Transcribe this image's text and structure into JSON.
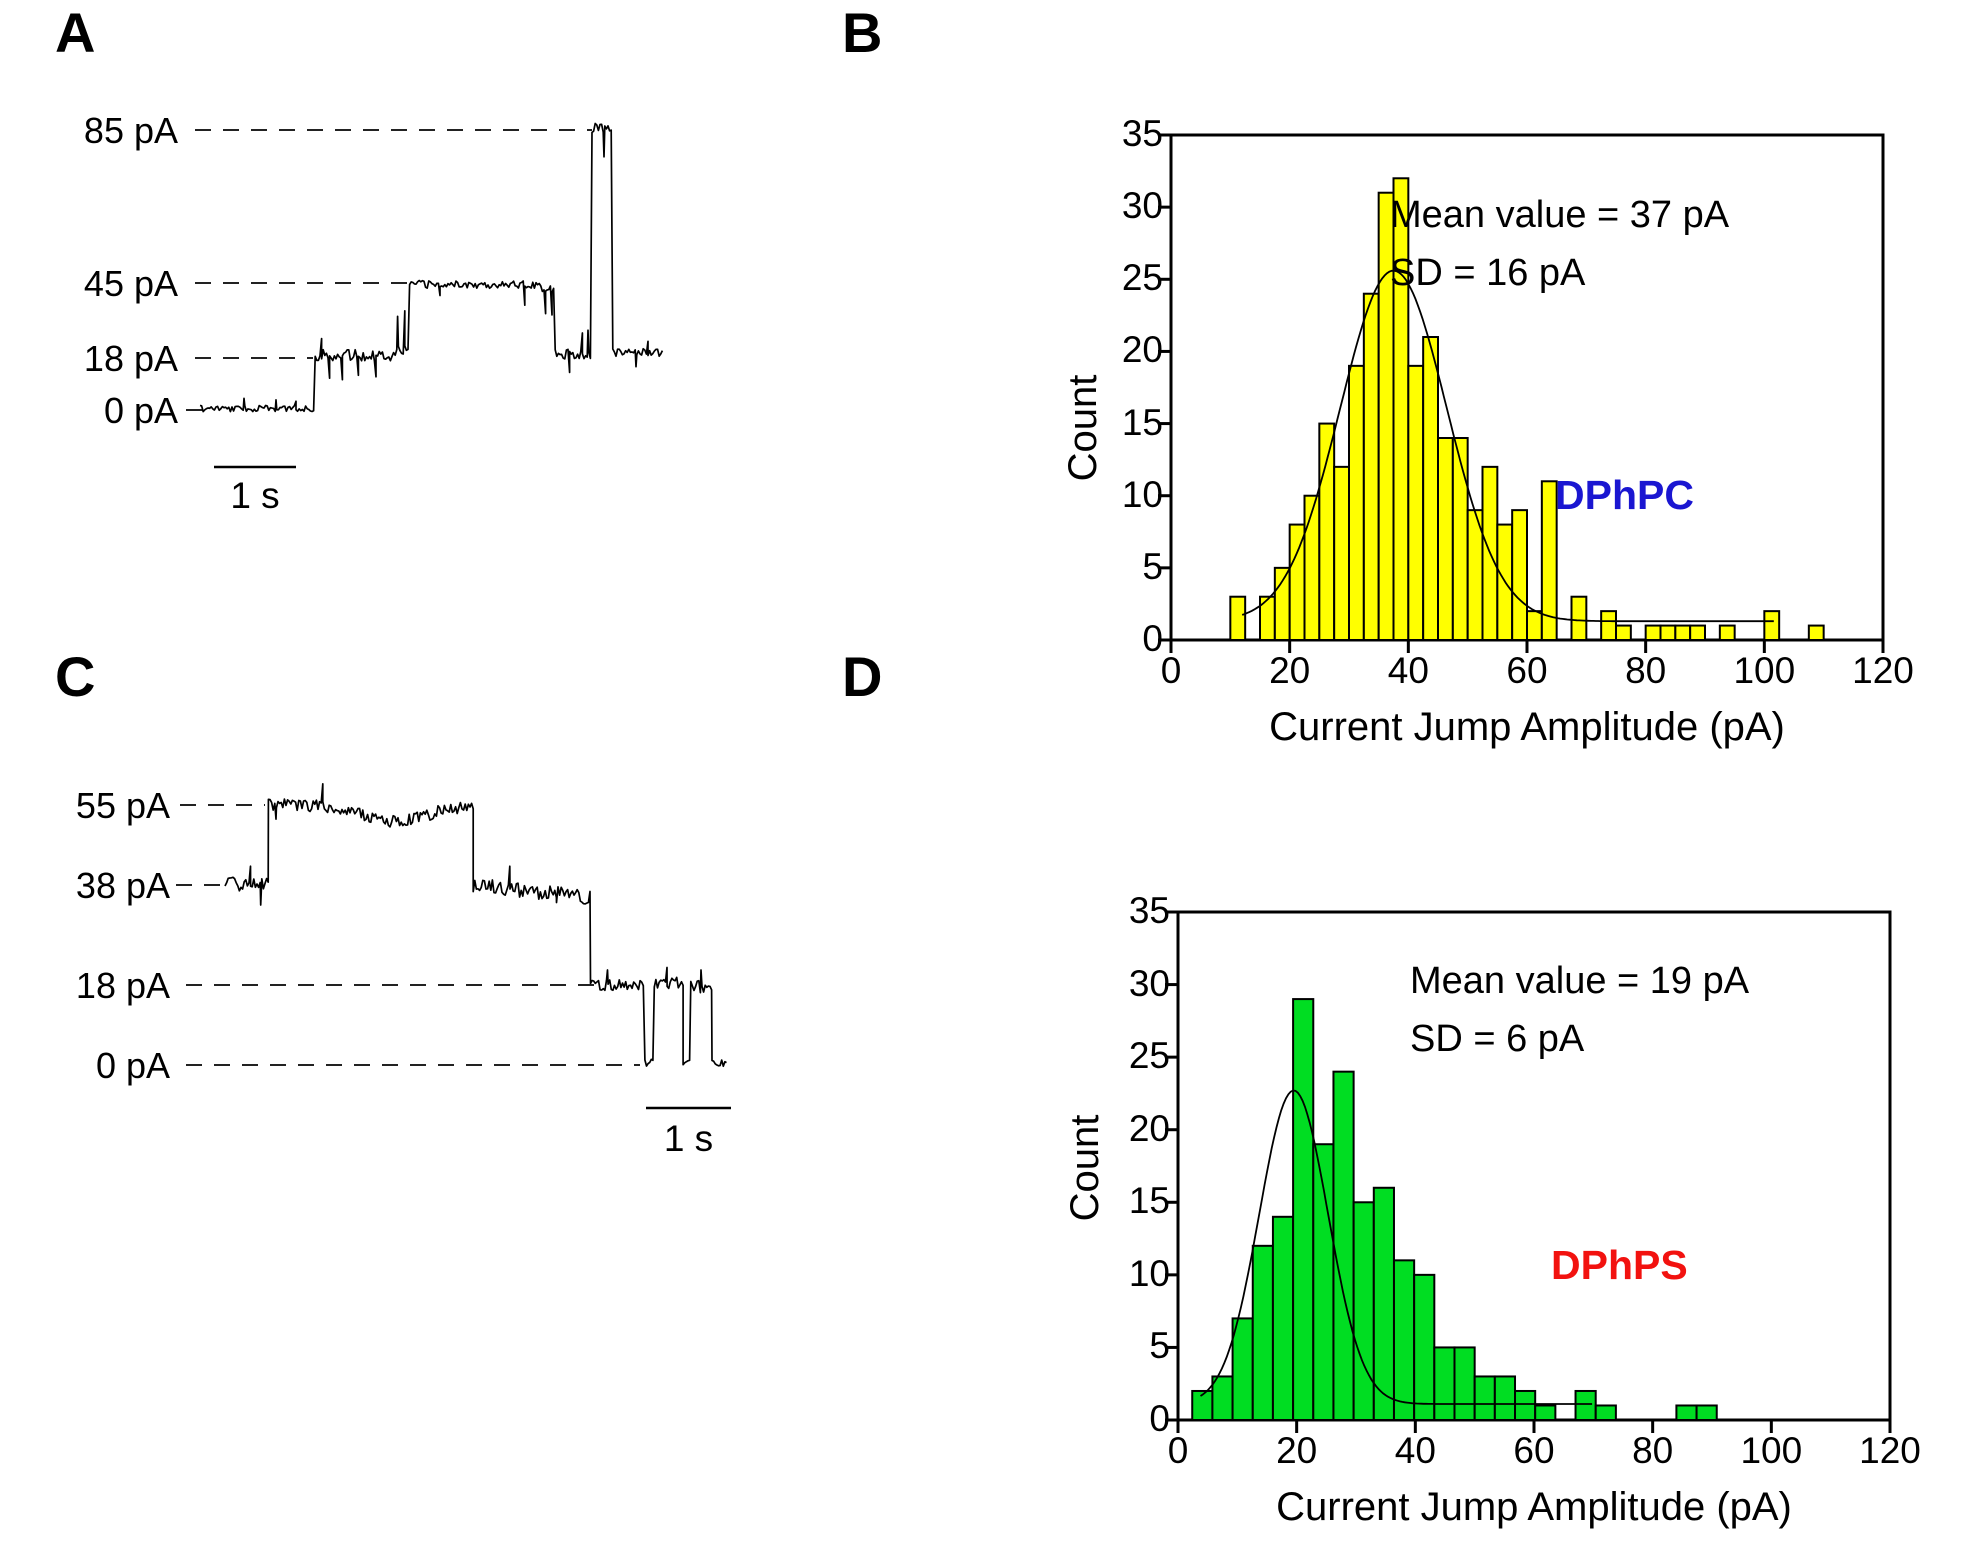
{
  "panels": {
    "a": {
      "label": "A",
      "levels": [
        {
          "text": "85 pA",
          "pA": 85
        },
        {
          "text": "45 pA",
          "pA": 45
        },
        {
          "text": "18 pA",
          "pA": 18
        },
        {
          "text": "0 pA",
          "pA": 0
        }
      ],
      "scale_bar": {
        "label": "1 s",
        "seconds": 1
      },
      "trace": {
        "units": {
          "x": "s",
          "y": "pA"
        },
        "segments": [
          {
            "t0": 0,
            "t1": 1.44,
            "pA": 0.5,
            "noise": 1.1,
            "spikes": [
              [
                0.55,
                4
              ],
              [
                0.95,
                3.5
              ],
              [
                1.2,
                3
              ]
            ]
          },
          {
            "t0": 1.44,
            "t1": 2.42,
            "pA": 19,
            "noise": 2.0,
            "spikes": [
              [
                1.52,
                25
              ],
              [
                1.62,
                11
              ],
              [
                1.78,
                10.5
              ],
              [
                1.98,
                12
              ],
              [
                2.2,
                11.5
              ]
            ]
          },
          {
            "t0": 2.42,
            "t1": 2.62,
            "pA": 21,
            "noise": 2.2,
            "spikes": [
              [
                2.47,
                33
              ],
              [
                2.56,
                35
              ]
            ]
          },
          {
            "t0": 2.62,
            "t1": 4.28,
            "pA": 44.5,
            "noise": 1.4,
            "spikes": [
              [
                3.0,
                40.5
              ],
              [
                4.06,
                37
              ]
            ]
          },
          {
            "t0": 4.28,
            "t1": 4.44,
            "pA": 43,
            "noise": 2.0,
            "spikes": [
              [
                4.32,
                34
              ],
              [
                4.4,
                33.5
              ]
            ]
          },
          {
            "t0": 4.44,
            "t1": 4.9,
            "pA": 19.5,
            "noise": 2.0,
            "spikes": [
              [
                4.62,
                13
              ],
              [
                4.78,
                27
              ],
              [
                4.85,
                28
              ]
            ]
          },
          {
            "t0": 4.9,
            "t1": 5.16,
            "pA": 85.5,
            "noise": 1.2,
            "spikes": [
              [
                5.05,
                78
              ]
            ]
          },
          {
            "t0": 5.16,
            "t1": 5.8,
            "pA": 20,
            "noise": 1.4,
            "spikes": [
              [
                5.45,
                15
              ],
              [
                5.6,
                24
              ]
            ]
          }
        ]
      }
    },
    "b": {
      "label": "B"
    },
    "c": {
      "label": "C",
      "levels": [
        {
          "text": "55 pA",
          "pA": 55
        },
        {
          "text": "38 pA",
          "pA": 38
        },
        {
          "text": "18 pA",
          "pA": 18
        },
        {
          "text": "0 pA",
          "pA": 0
        }
      ],
      "scale_bar": {
        "label": "1 s",
        "seconds": 1
      },
      "trace": {
        "units": {
          "x": "s",
          "y": "pA"
        },
        "segments": [
          {
            "t0": 0,
            "t1": 0.51,
            "pA": 38,
            "noise": 1.6,
            "spikes": [
              [
                0.3,
                42
              ],
              [
                0.42,
                34
              ]
            ]
          },
          {
            "t0": 0.51,
            "t1": 2.92,
            "pA": 55,
            "noise": 1.3,
            "sag": -3.5,
            "spikes": [
              [
                0.6,
                52
              ],
              [
                1.15,
                59.5
              ]
            ]
          },
          {
            "t0": 2.92,
            "t1": 4.3,
            "pA": 38,
            "noise": 1.5,
            "drift": -2.5,
            "spikes": [
              [
                3.35,
                42
              ],
              [
                3.9,
                34.5
              ]
            ]
          },
          {
            "t0": 4.3,
            "t1": 4.94,
            "pA": 18,
            "noise": 1.2,
            "spikes": [
              [
                4.5,
                21
              ]
            ]
          },
          {
            "t0": 4.94,
            "t1": 5.05,
            "pA": 0.5,
            "noise": 0.8,
            "spikes": []
          },
          {
            "t0": 5.05,
            "t1": 5.39,
            "pA": 18.5,
            "noise": 1.2,
            "spikes": [
              [
                5.2,
                21.5
              ]
            ]
          },
          {
            "t0": 5.39,
            "t1": 5.48,
            "pA": 0.5,
            "noise": 0.8,
            "spikes": []
          },
          {
            "t0": 5.48,
            "t1": 5.73,
            "pA": 17.5,
            "noise": 1.5,
            "spikes": [
              [
                5.6,
                21
              ]
            ]
          },
          {
            "t0": 5.73,
            "t1": 5.9,
            "pA": 0.5,
            "noise": 0.8,
            "spikes": []
          }
        ]
      }
    },
    "d": {
      "label": "D"
    }
  },
  "chart_data": [
    {
      "panel": "B",
      "type": "bar",
      "title": "",
      "xlabel": "Current Jump Amplitude (pA)",
      "ylabel": "Count",
      "xlim": [
        0,
        120
      ],
      "ylim": [
        0,
        35
      ],
      "xticks": [
        0,
        20,
        40,
        60,
        80,
        100,
        120
      ],
      "yticks": [
        0,
        5,
        10,
        15,
        20,
        25,
        30,
        35
      ],
      "grid": false,
      "legend": false,
      "bar_color": "#ffff00",
      "bar_edge": "#000000",
      "bins": {
        "start": 10,
        "width": 2.5
      },
      "values": [
        3,
        0,
        3,
        5,
        8,
        10,
        15,
        12,
        19,
        24,
        31,
        32,
        19,
        21,
        14,
        14,
        9,
        12,
        8,
        9,
        2,
        11,
        0,
        3,
        0,
        2,
        1,
        0,
        1,
        1,
        1,
        1,
        0,
        1,
        0,
        0,
        2,
        0,
        0,
        1
      ],
      "annotations": [
        "Mean value = 37 pA",
        "SD = 16 pA"
      ],
      "series_label": "DPhPC",
      "label_color": "#1a16d1",
      "fit": {
        "type": "gaussian",
        "mean": 37.5,
        "sigma": 9,
        "amplitude": 24.3,
        "baseline": 1.3,
        "x_start": 12,
        "x_end": 102
      }
    },
    {
      "panel": "D",
      "type": "bar",
      "title": "",
      "xlabel": "Current Jump Amplitude (pA)",
      "ylabel": "Count",
      "xlim": [
        0,
        120
      ],
      "ylim": [
        0,
        35
      ],
      "xticks": [
        0,
        20,
        40,
        60,
        80,
        100,
        120
      ],
      "yticks": [
        0,
        5,
        10,
        15,
        20,
        25,
        30,
        35
      ],
      "grid": false,
      "legend": false,
      "bar_color": "#00dd22",
      "bar_edge": "#000000",
      "bins": {
        "start": 2.4,
        "width": 3.4
      },
      "values": [
        2,
        3,
        7,
        12,
        14,
        29,
        19,
        24,
        15,
        16,
        11,
        10,
        5,
        5,
        3,
        3,
        2,
        1,
        0,
        2,
        1,
        0,
        0,
        0,
        1,
        1
      ],
      "annotations": [
        "Mean value = 19 pA",
        "SD = 6 pA"
      ],
      "series_label": "DPhPS",
      "label_color": "#f2120f",
      "fit": {
        "type": "gaussian",
        "mean": 19.5,
        "sigma": 5.8,
        "amplitude": 21.6,
        "baseline": 1.1,
        "x_start": 3.8,
        "x_end": 70
      }
    }
  ]
}
